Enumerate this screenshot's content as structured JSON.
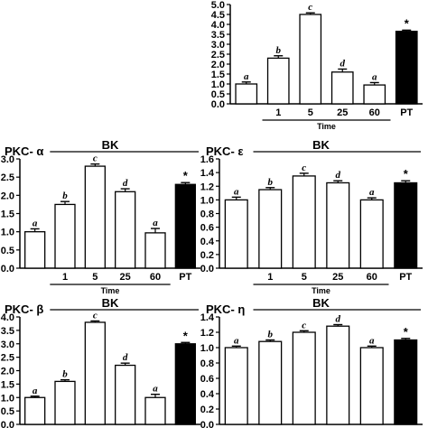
{
  "chart_data": [
    {
      "id": "top",
      "type": "bar",
      "title": "",
      "ylim": [
        0,
        5.0
      ],
      "ytick_step": 0.5,
      "ytick_decimals": 1,
      "categories": [
        "",
        "1",
        "5",
        "25",
        "60",
        "PT"
      ],
      "values": [
        1.0,
        2.3,
        4.5,
        1.6,
        0.95,
        3.65
      ],
      "errors": [
        0.1,
        0.12,
        0.08,
        0.15,
        0.12,
        0.06
      ],
      "annotations": [
        "a",
        "b",
        "c",
        "d",
        "a",
        "*"
      ],
      "fills": [
        "white",
        "white",
        "white",
        "white",
        "white",
        "black"
      ],
      "bracket_label": "",
      "xlabel": "Time"
    },
    {
      "id": "alpha",
      "type": "bar",
      "title": "PKC- α",
      "ylim": [
        0,
        3.0
      ],
      "ytick_step": 0.5,
      "ytick_decimals": 1,
      "categories": [
        "",
        "1",
        "5",
        "25",
        "60",
        "PT"
      ],
      "values": [
        1.0,
        1.75,
        2.8,
        2.1,
        0.97,
        2.3
      ],
      "errors": [
        0.08,
        0.08,
        0.06,
        0.08,
        0.12,
        0.05
      ],
      "annotations": [
        "a",
        "b",
        "c",
        "d",
        "a",
        "*"
      ],
      "fills": [
        "white",
        "white",
        "white",
        "white",
        "white",
        "black"
      ],
      "bracket_label": "BK",
      "xlabel": "Time"
    },
    {
      "id": "epsilon",
      "type": "bar",
      "title": "PKC- ε",
      "ylim": [
        0,
        1.6
      ],
      "ytick_step": 0.2,
      "ytick_decimals": 1,
      "categories": [
        "",
        "1",
        "5",
        "25",
        "60",
        "PT"
      ],
      "values": [
        1.0,
        1.15,
        1.35,
        1.25,
        1.0,
        1.25
      ],
      "errors": [
        0.04,
        0.03,
        0.04,
        0.03,
        0.03,
        0.03
      ],
      "annotations": [
        "a",
        "b",
        "c",
        "d",
        "a",
        "*"
      ],
      "fills": [
        "white",
        "white",
        "white",
        "white",
        "white",
        "black"
      ],
      "bracket_label": "BK",
      "xlabel": "Time"
    },
    {
      "id": "beta",
      "type": "bar",
      "title": "PKC- β",
      "ylim": [
        0,
        4.0
      ],
      "ytick_step": 0.5,
      "ytick_decimals": 1,
      "categories": [
        "",
        "",
        "",
        "",
        "",
        ""
      ],
      "values": [
        1.0,
        1.6,
        3.8,
        2.2,
        1.0,
        3.0
      ],
      "errors": [
        0.05,
        0.06,
        0.05,
        0.08,
        0.12,
        0.05
      ],
      "annotations": [
        "a",
        "b",
        "c",
        "d",
        "a",
        "*"
      ],
      "fills": [
        "white",
        "white",
        "white",
        "white",
        "white",
        "black"
      ],
      "bracket_label": "BK",
      "xlabel": ""
    },
    {
      "id": "eta",
      "type": "bar",
      "title": "PKC- η",
      "ylim": [
        0,
        1.4
      ],
      "ytick_step": 0.2,
      "ytick_decimals": 1,
      "categories": [
        "",
        "",
        "",
        "",
        "",
        ""
      ],
      "values": [
        1.0,
        1.08,
        1.2,
        1.28,
        1.0,
        1.1
      ],
      "errors": [
        0.02,
        0.02,
        0.02,
        0.02,
        0.02,
        0.02
      ],
      "annotations": [
        "a",
        "b",
        "c",
        "d",
        "a",
        "*"
      ],
      "fills": [
        "white",
        "white",
        "white",
        "white",
        "white",
        "black"
      ],
      "bracket_label": "BK",
      "xlabel": ""
    }
  ]
}
